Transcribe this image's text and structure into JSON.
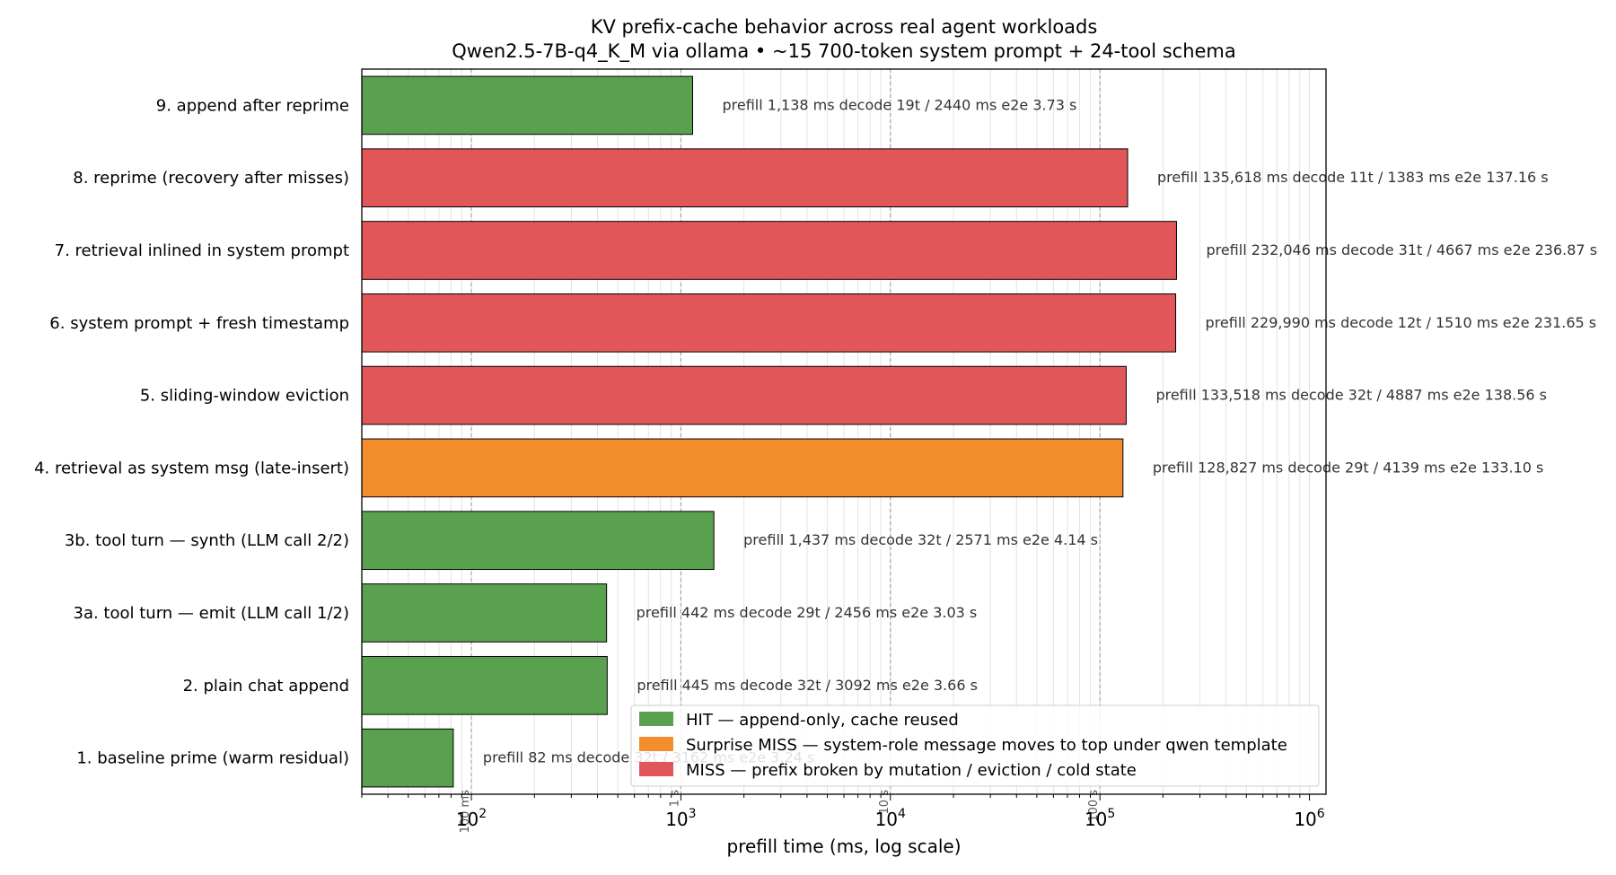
{
  "chart_data": {
    "type": "bar",
    "orientation": "horizontal",
    "title": "KV prefix-cache behavior across real agent workloads",
    "subtitle": "Qwen2.5-7B-q4_K_M via ollama  •  ~15 700-token system prompt + 24-tool schema",
    "xlabel": "prefill time (ms, log scale)",
    "ylabel": "",
    "x_scale": "log",
    "xlim": [
      30,
      1200000
    ],
    "x_ticks": [
      {
        "value": 100,
        "base": "10",
        "exp": "2"
      },
      {
        "value": 1000,
        "base": "10",
        "exp": "3"
      },
      {
        "value": 10000,
        "base": "10",
        "exp": "4"
      },
      {
        "value": 100000,
        "base": "10",
        "exp": "5"
      },
      {
        "value": 1000000,
        "base": "10",
        "exp": "6"
      }
    ],
    "reference_lines": [
      {
        "value": 100,
        "label": "100 ms"
      },
      {
        "value": 1000,
        "label": "1 s"
      },
      {
        "value": 10000,
        "label": "10 s"
      },
      {
        "value": 100000,
        "label": "100 s"
      }
    ],
    "grid": true,
    "legend_position": "bottom-right",
    "legend": [
      {
        "key": "hit",
        "label": "HIT — append-only, cache reused",
        "color": "#59a14f"
      },
      {
        "key": "surprise",
        "label": "Surprise MISS — system-role message moves to top under qwen template",
        "color": "#f28e2b"
      },
      {
        "key": "miss",
        "label": "MISS — prefix broken by mutation / eviction / cold state",
        "color": "#e15759"
      }
    ],
    "bars": [
      {
        "label": "1. baseline prime (warm residual)",
        "value": 82,
        "status": "hit",
        "annotation": "prefill 82 ms   decode 32t / 3162 ms   e2e 3.24 s"
      },
      {
        "label": "2. plain chat append",
        "value": 445,
        "status": "hit",
        "annotation": "prefill 445 ms   decode 32t / 3092 ms   e2e 3.66 s"
      },
      {
        "label": "3a. tool turn — emit  (LLM call 1/2)",
        "value": 442,
        "status": "hit",
        "annotation": "prefill 442 ms   decode 29t / 2456 ms   e2e 3.03 s"
      },
      {
        "label": "3b. tool turn — synth (LLM call 2/2)",
        "value": 1437,
        "status": "hit",
        "annotation": "prefill 1,437 ms   decode 32t / 2571 ms   e2e 4.14 s"
      },
      {
        "label": "4. retrieval as system msg (late-insert)",
        "value": 128827,
        "status": "surprise",
        "annotation": "prefill 128,827 ms   decode 29t / 4139 ms   e2e 133.10 s"
      },
      {
        "label": "5. sliding-window eviction",
        "value": 133518,
        "status": "miss",
        "annotation": "prefill 133,518 ms   decode 32t / 4887 ms   e2e 138.56 s"
      },
      {
        "label": "6. system prompt + fresh timestamp",
        "value": 229990,
        "status": "miss",
        "annotation": "prefill 229,990 ms   decode 12t / 1510 ms   e2e 231.65 s"
      },
      {
        "label": "7. retrieval inlined in system prompt",
        "value": 232046,
        "status": "miss",
        "annotation": "prefill 232,046 ms   decode 31t / 4667 ms   e2e 236.87 s"
      },
      {
        "label": "8. reprime (recovery after misses)",
        "value": 135618,
        "status": "miss",
        "annotation": "prefill 135,618 ms   decode 11t / 1383 ms   e2e 137.16 s"
      },
      {
        "label": "9. append after reprime",
        "value": 1138,
        "status": "hit",
        "annotation": "prefill 1,138 ms   decode 19t / 2440 ms   e2e 3.73 s"
      }
    ]
  }
}
